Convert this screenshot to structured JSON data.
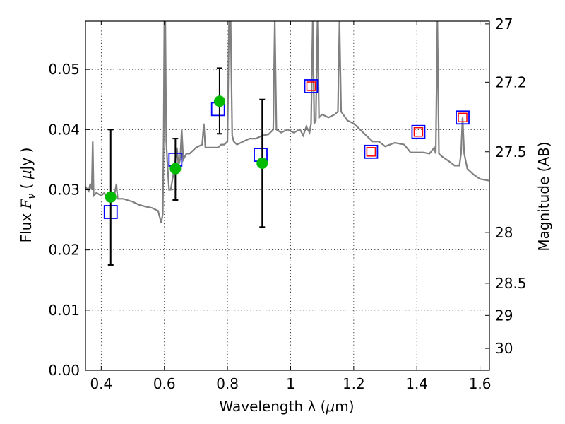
{
  "chart_data": {
    "type": "scatter",
    "title": "",
    "xlabel_text": "Wavelength  λ (",
    "xlabel_mu": "μ",
    "xlabel_end": "m)",
    "ylabel_text": "Flux  ",
    "ylabel_F": "F",
    "ylabel_nu": "ν",
    "ylabel_mid": "  ( ",
    "ylabel_mu": "μ",
    "ylabel_end": "Jy )",
    "y2label": "Magnitude (AB)",
    "xlim": [
      0.35,
      1.63
    ],
    "ylim": [
      0.0,
      0.058
    ],
    "grid": true,
    "xticks": [
      {
        "v": 0.4,
        "label": "0.4"
      },
      {
        "v": 0.6,
        "label": "0.6"
      },
      {
        "v": 0.8,
        "label": "0.8"
      },
      {
        "v": 1.0,
        "label": "1"
      },
      {
        "v": 1.2,
        "label": "1.2"
      },
      {
        "v": 1.4,
        "label": "1.4"
      },
      {
        "v": 1.6,
        "label": "1.6"
      }
    ],
    "yticks": [
      {
        "v": 0.0,
        "label": "0.00"
      },
      {
        "v": 0.01,
        "label": "0.01"
      },
      {
        "v": 0.02,
        "label": "0.02"
      },
      {
        "v": 0.03,
        "label": "0.03"
      },
      {
        "v": 0.04,
        "label": "0.04"
      },
      {
        "v": 0.05,
        "label": "0.05"
      }
    ],
    "y2ticks": [
      {
        "mag": 27,
        "label": "27"
      },
      {
        "mag": 27.2,
        "label": "27.2"
      },
      {
        "mag": 27.5,
        "label": "27.5"
      },
      {
        "mag": 28,
        "label": "28"
      },
      {
        "mag": 28.5,
        "label": "28.5"
      },
      {
        "mag": 29,
        "label": "29"
      },
      {
        "mag": 30,
        "label": "30"
      }
    ],
    "colors": {
      "spectrum": "#808080",
      "observed": "#00bb00",
      "model_outer": "#0000ff",
      "model_inner": "#ff0000",
      "errorbar": "#000000"
    },
    "series": [
      {
        "kind": "spectrum",
        "points": [
          [
            0.35,
            0.0305
          ],
          [
            0.36,
            0.0298
          ],
          [
            0.365,
            0.031
          ],
          [
            0.37,
            0.03
          ],
          [
            0.373,
            0.038
          ],
          [
            0.376,
            0.029
          ],
          [
            0.385,
            0.0295
          ],
          [
            0.4,
            0.029
          ],
          [
            0.41,
            0.0295
          ],
          [
            0.42,
            0.0282
          ],
          [
            0.43,
            0.029
          ],
          [
            0.44,
            0.0285
          ],
          [
            0.448,
            0.031
          ],
          [
            0.452,
            0.0285
          ],
          [
            0.47,
            0.0285
          ],
          [
            0.5,
            0.028
          ],
          [
            0.52,
            0.0275
          ],
          [
            0.54,
            0.0272
          ],
          [
            0.56,
            0.027
          ],
          [
            0.58,
            0.0265
          ],
          [
            0.59,
            0.0245
          ],
          [
            0.595,
            0.026
          ],
          [
            0.598,
            0.04
          ],
          [
            0.6,
            0.058
          ],
          [
            0.603,
            0.058
          ],
          [
            0.606,
            0.038
          ],
          [
            0.61,
            0.034
          ],
          [
            0.615,
            0.03
          ],
          [
            0.62,
            0.03
          ],
          [
            0.63,
            0.033
          ],
          [
            0.64,
            0.037
          ],
          [
            0.645,
            0.034
          ],
          [
            0.65,
            0.035
          ],
          [
            0.655,
            0.04
          ],
          [
            0.66,
            0.035
          ],
          [
            0.67,
            0.036
          ],
          [
            0.68,
            0.036
          ],
          [
            0.7,
            0.037
          ],
          [
            0.72,
            0.0375
          ],
          [
            0.725,
            0.041
          ],
          [
            0.73,
            0.037
          ],
          [
            0.75,
            0.037
          ],
          [
            0.77,
            0.037
          ],
          [
            0.78,
            0.0375
          ],
          [
            0.79,
            0.0375
          ],
          [
            0.8,
            0.038
          ],
          [
            0.805,
            0.058
          ],
          [
            0.81,
            0.058
          ],
          [
            0.815,
            0.039
          ],
          [
            0.82,
            0.038
          ],
          [
            0.83,
            0.0375
          ],
          [
            0.85,
            0.038
          ],
          [
            0.87,
            0.0385
          ],
          [
            0.89,
            0.0385
          ],
          [
            0.91,
            0.039
          ],
          [
            0.93,
            0.0392
          ],
          [
            0.945,
            0.04
          ],
          [
            0.95,
            0.058
          ],
          [
            0.955,
            0.04
          ],
          [
            0.97,
            0.0395
          ],
          [
            0.99,
            0.04
          ],
          [
            1.01,
            0.0395
          ],
          [
            1.03,
            0.04
          ],
          [
            1.04,
            0.039
          ],
          [
            1.05,
            0.0405
          ],
          [
            1.06,
            0.0395
          ],
          [
            1.065,
            0.041
          ],
          [
            1.07,
            0.058
          ],
          [
            1.075,
            0.041
          ],
          [
            1.08,
            0.0415
          ],
          [
            1.085,
            0.058
          ],
          [
            1.09,
            0.042
          ],
          [
            1.1,
            0.0425
          ],
          [
            1.12,
            0.042
          ],
          [
            1.14,
            0.0425
          ],
          [
            1.15,
            0.043
          ],
          [
            1.155,
            0.058
          ],
          [
            1.16,
            0.043
          ],
          [
            1.18,
            0.0415
          ],
          [
            1.2,
            0.041
          ],
          [
            1.22,
            0.04
          ],
          [
            1.24,
            0.039
          ],
          [
            1.26,
            0.038
          ],
          [
            1.28,
            0.038
          ],
          [
            1.3,
            0.0372
          ],
          [
            1.33,
            0.0378
          ],
          [
            1.36,
            0.0375
          ],
          [
            1.38,
            0.0362
          ],
          [
            1.4,
            0.0362
          ],
          [
            1.42,
            0.0362
          ],
          [
            1.44,
            0.036
          ],
          [
            1.455,
            0.037
          ],
          [
            1.46,
            0.036
          ],
          [
            1.465,
            0.058
          ],
          [
            1.47,
            0.036
          ],
          [
            1.48,
            0.0355
          ],
          [
            1.5,
            0.0348
          ],
          [
            1.52,
            0.034
          ],
          [
            1.535,
            0.034
          ],
          [
            1.54,
            0.036
          ],
          [
            1.545,
            0.042
          ],
          [
            1.55,
            0.036
          ],
          [
            1.56,
            0.0335
          ],
          [
            1.58,
            0.0325
          ],
          [
            1.6,
            0.0318
          ],
          [
            1.63,
            0.0315
          ]
        ]
      },
      {
        "kind": "observed",
        "points": [
          {
            "x": 0.43,
            "y": 0.0288,
            "ylo": 0.0175,
            "yhi": 0.04
          },
          {
            "x": 0.635,
            "y": 0.0335,
            "ylo": 0.0283,
            "yhi": 0.0385
          },
          {
            "x": 0.775,
            "y": 0.0447,
            "ylo": 0.0393,
            "yhi": 0.0502
          },
          {
            "x": 0.91,
            "y": 0.0344,
            "ylo": 0.0238,
            "yhi": 0.045
          }
        ]
      },
      {
        "kind": "model",
        "points": [
          {
            "x": 0.43,
            "y": 0.0263,
            "inner": false
          },
          {
            "x": 0.635,
            "y": 0.035,
            "inner": false
          },
          {
            "x": 0.77,
            "y": 0.0434,
            "inner": false
          },
          {
            "x": 0.905,
            "y": 0.0358,
            "inner": false
          },
          {
            "x": 1.065,
            "y": 0.0472,
            "inner": true
          },
          {
            "x": 1.255,
            "y": 0.0363,
            "inner": true
          },
          {
            "x": 1.405,
            "y": 0.0396,
            "inner": true
          },
          {
            "x": 1.545,
            "y": 0.042,
            "inner": true
          }
        ]
      }
    ]
  }
}
